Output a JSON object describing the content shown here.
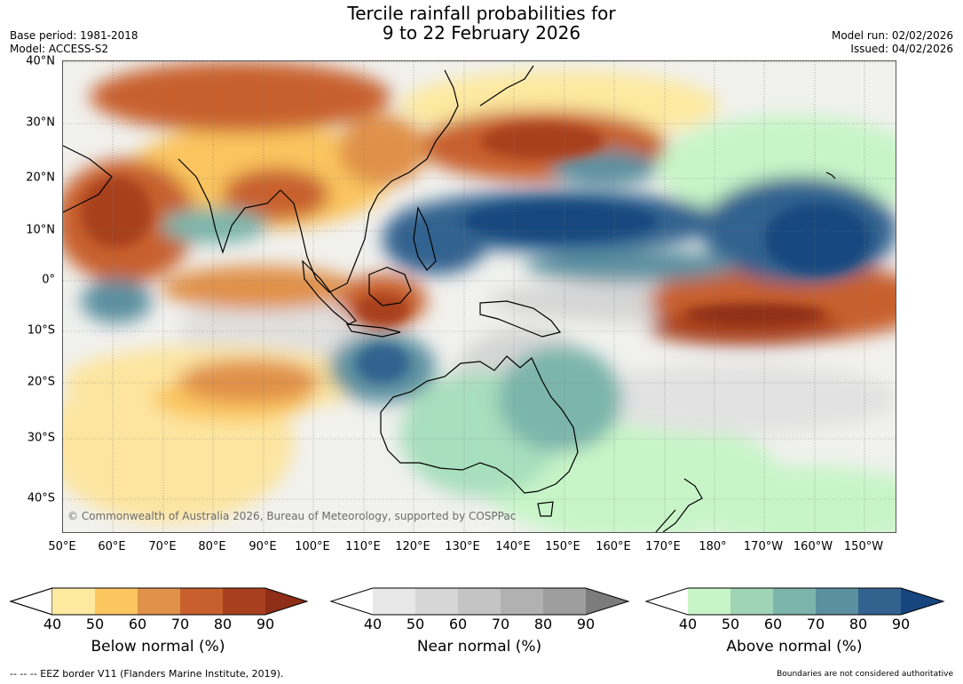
{
  "title_line1": "Tercile rainfall probabilities for",
  "title_line2": "9 to 22 February 2026",
  "meta_left": {
    "base_period": "Base period: 1981-2018",
    "model": "Model: ACCESS-S2"
  },
  "meta_right": {
    "model_run": "Model run: 02/02/2026",
    "issued": "Issued: 04/02/2026"
  },
  "map": {
    "lat_labels": [
      "40°N",
      "30°N",
      "20°N",
      "10°N",
      "0°",
      "10°S",
      "20°S",
      "30°S",
      "40°S"
    ],
    "lon_labels": [
      "50°E",
      "60°E",
      "70°E",
      "80°E",
      "90°E",
      "100°E",
      "110°E",
      "120°E",
      "130°E",
      "140°E",
      "150°E",
      "160°E",
      "170°E",
      "180°",
      "170°W",
      "160°W",
      "150°W"
    ],
    "copyright": "© Commonwealth of Australia 2026, Bureau of Meteorology, supported by COSPPac"
  },
  "colorbars": [
    {
      "name": "below",
      "title": "Below normal (%)",
      "ticks": [
        "40",
        "50",
        "60",
        "70",
        "80",
        "90"
      ],
      "colors": [
        "#ffffff",
        "#fde9a0",
        "#fbc55f",
        "#e0914a",
        "#c8602e",
        "#a8401f",
        "#8e2e18"
      ]
    },
    {
      "name": "near",
      "title": "Near normal (%)",
      "ticks": [
        "40",
        "50",
        "60",
        "70",
        "80",
        "90"
      ],
      "colors": [
        "#ffffff",
        "#e8e8e8",
        "#d6d6d6",
        "#c4c4c4",
        "#b1b1b1",
        "#9e9e9e",
        "#7c7c7c"
      ]
    },
    {
      "name": "above",
      "title": "Above normal (%)",
      "ticks": [
        "40",
        "50",
        "60",
        "70",
        "80",
        "90"
      ],
      "colors": [
        "#ffffff",
        "#c8f5c8",
        "#9fd4b5",
        "#7cb5ac",
        "#5b90a0",
        "#33628f",
        "#17467e"
      ]
    }
  ],
  "footer": {
    "eez": "--  --  -- EEZ border V11 (Flanders Marine Institute, 2019).",
    "disclaimer": "Boundaries are not considered authoritative"
  }
}
